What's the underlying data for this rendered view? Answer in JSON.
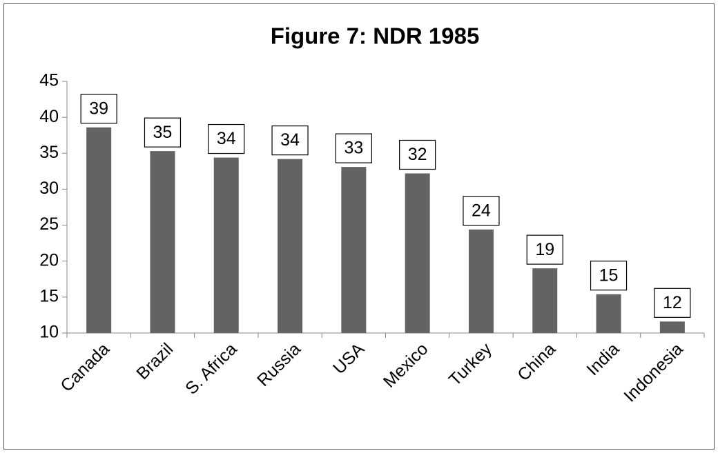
{
  "chart_data": {
    "type": "bar",
    "title": "Figure 7: NDR 1985",
    "categories": [
      "Canada",
      "Brazil",
      "S. Africa",
      "Russia",
      "USA",
      "Mexico",
      "Turkey",
      "China",
      "India",
      "Indonesia"
    ],
    "values": [
      38.6,
      35.3,
      34.4,
      34.2,
      33.1,
      32.2,
      24.4,
      19.0,
      15.4,
      11.6
    ],
    "value_labels": [
      "39",
      "35",
      "34",
      "34",
      "33",
      "32",
      "24",
      "19",
      "15",
      "12"
    ],
    "color": "#636363",
    "ylim": [
      10,
      45
    ],
    "yticks": [
      10,
      15,
      20,
      25,
      30,
      35,
      40,
      45
    ],
    "grid": false
  }
}
